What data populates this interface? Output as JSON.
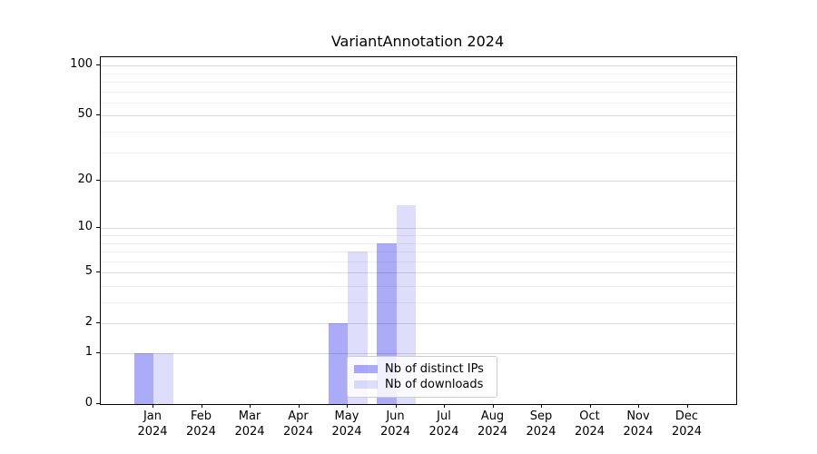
{
  "title": "VariantAnnotation 2024",
  "chart_data": {
    "type": "bar",
    "title": "VariantAnnotation 2024",
    "categories": [
      "Jan 2024",
      "Feb 2024",
      "Mar 2024",
      "Apr 2024",
      "May 2024",
      "Jun 2024",
      "Jul 2024",
      "Aug 2024",
      "Sep 2024",
      "Oct 2024",
      "Nov 2024",
      "Dec 2024"
    ],
    "series": [
      {
        "name": "Nb of distinct IPs",
        "base_color": "#0000eb",
        "alpha": 0.33,
        "flat_color": "#aaaaf2",
        "values": [
          1,
          0,
          0,
          0,
          2,
          8,
          0,
          0,
          0,
          0,
          0,
          0
        ]
      },
      {
        "name": "Nb of downloads",
        "base_color": "#0000eb",
        "alpha": 0.13,
        "flat_color": "#dcdcf8",
        "values": [
          1,
          0,
          0,
          0,
          7,
          14,
          0,
          0,
          0,
          0,
          0,
          0
        ]
      }
    ],
    "xlabel": "",
    "ylabel": "",
    "yscale": "log1p",
    "ylim": [
      0,
      112
    ],
    "yticks": [
      0,
      1,
      2,
      5,
      10,
      20,
      50,
      100
    ],
    "yticks_minor": [
      3,
      4,
      6,
      7,
      8,
      9,
      30,
      40,
      60,
      70,
      80,
      90
    ],
    "grid": "horizontal",
    "legend_position": "lower-center-inside"
  },
  "legend": {
    "items": [
      {
        "label": "Nb of distinct IPs"
      },
      {
        "label": "Nb of downloads"
      }
    ]
  },
  "colors": {
    "grid_major": "#d9d9d9",
    "grid_minor": "#efefef",
    "axis": "#000000",
    "legend_border": "#cccccc"
  }
}
